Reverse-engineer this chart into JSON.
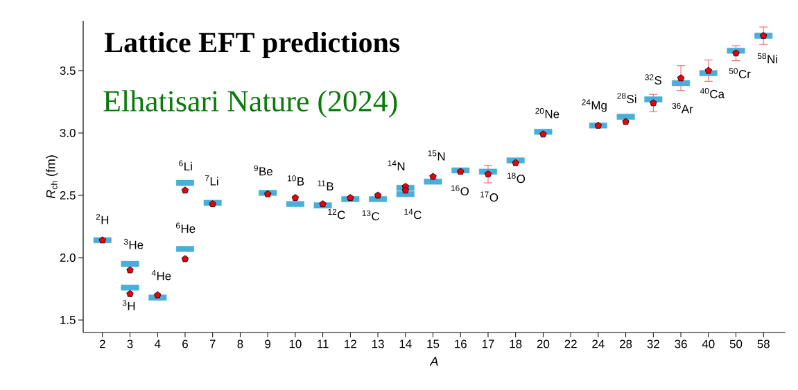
{
  "chart_data": {
    "type": "scatter",
    "title": "Lattice EFT predictions",
    "subtitle": "Elhatisari Nature (2024)",
    "xlabel": "A",
    "ylabel": "*R*$_{ch}$ (fm)",
    "categories": [
      "2",
      "3",
      "4",
      "6",
      "7",
      "8",
      "9",
      "10",
      "11",
      "12",
      "13",
      "14",
      "15",
      "16",
      "17",
      "18",
      "20",
      "22",
      "24",
      "28",
      "32",
      "36",
      "40",
      "50",
      "58"
    ],
    "ylim": [
      1.4,
      3.9
    ],
    "yticks": [
      1.5,
      {
        "value": 2,
        "label": "2.0"
      },
      2.5,
      {
        "value": 3,
        "label": "3.0"
      },
      3.5
    ],
    "series": [
      {
        "color": "#4aaed8",
        "marker": "square",
        "values": [
          2.14,
          1.76,
          1.68,
          2.6,
          2.44,
          null,
          2.52,
          2.43,
          2.42,
          2.47,
          2.47,
          2.51,
          2.61,
          2.7,
          2.69,
          2.78,
          3.01,
          null,
          3.06,
          3.13,
          3.27,
          3.4,
          3.48,
          3.66,
          3.78
        ]
      },
      {
        "color": "#4aaed8",
        "marker": "square",
        "values": [
          null,
          1.95,
          null,
          2.07,
          null,
          null,
          null,
          null,
          null,
          null,
          null,
          2.56,
          null,
          null,
          null,
          null,
          null,
          null,
          null,
          null,
          null,
          null,
          null,
          null,
          null
        ]
      },
      {
        "color": "#e8000b",
        "values": [
          2.14,
          1.71,
          1.7,
          2.54,
          2.43,
          null,
          2.51,
          2.48,
          2.43,
          2.48,
          2.5,
          2.54,
          2.65,
          2.69,
          2.67,
          2.76,
          2.99,
          null,
          3.06,
          3.09,
          3.24,
          3.44,
          3.5,
          3.64,
          3.78
        ],
        "errors": [
          null,
          null,
          null,
          null,
          null,
          null,
          null,
          null,
          null,
          null,
          null,
          null,
          null,
          null,
          0.07,
          null,
          null,
          null,
          null,
          null,
          0.07,
          0.1,
          0.085,
          0.06,
          0.07
        ]
      },
      {
        "color": "#e8000b",
        "values": [
          null,
          1.9,
          null,
          1.99,
          null,
          null,
          null,
          null,
          null,
          null,
          null,
          2.57,
          null,
          null,
          null,
          null,
          null,
          null,
          null,
          null,
          null,
          null,
          null,
          null,
          null
        ]
      }
    ],
    "annotations": [
      "$^{2}$H",
      "$^{3}$H",
      "$^{3}$He",
      "$^{4}$He",
      "$^{6}$He",
      "$^{6}$Li",
      "$^{7}$Li",
      "$^{9}$Be",
      "$^{10}$B",
      "$^{11}$B",
      "$^{12}$C",
      "$^{13}$C",
      "$^{14}$N",
      "$^{14}$C",
      "$^{15}$N",
      "$^{16}$O",
      "$^{17}$O",
      "$^{18}$O",
      "$^{20}$Ne",
      "$^{24}$Mg",
      "$^{28}$Si",
      "$^{32}$S",
      "$^{36}$Ar",
      "$^{40}$Ca",
      "$^{50}$Cr",
      "$^{58}$Ni"
    ]
  }
}
